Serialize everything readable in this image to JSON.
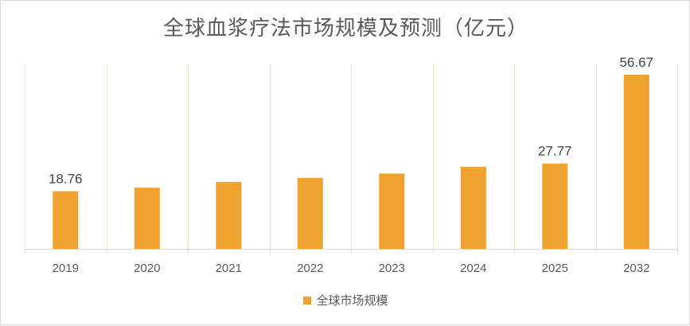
{
  "chart_data": {
    "type": "bar",
    "title": "全球血浆疗法市场规模及预测（亿元）",
    "categories": [
      "2019",
      "2020",
      "2021",
      "2022",
      "2023",
      "2024",
      "2025",
      "2032"
    ],
    "series": [
      {
        "name": "全球市场规模",
        "values": [
          18.76,
          19.9,
          21.8,
          23.1,
          24.5,
          26.7,
          27.77,
          56.67
        ],
        "color": "#efa230"
      }
    ],
    "data_labels": [
      "18.76",
      "",
      "",
      "",
      "",
      "",
      "27.77",
      "56.67"
    ],
    "ylim": [
      0,
      60
    ],
    "grid": "vertical",
    "gridColor": "#f3e6c9",
    "axisColor": "#d9d9d9",
    "legend_position": "bottom"
  }
}
